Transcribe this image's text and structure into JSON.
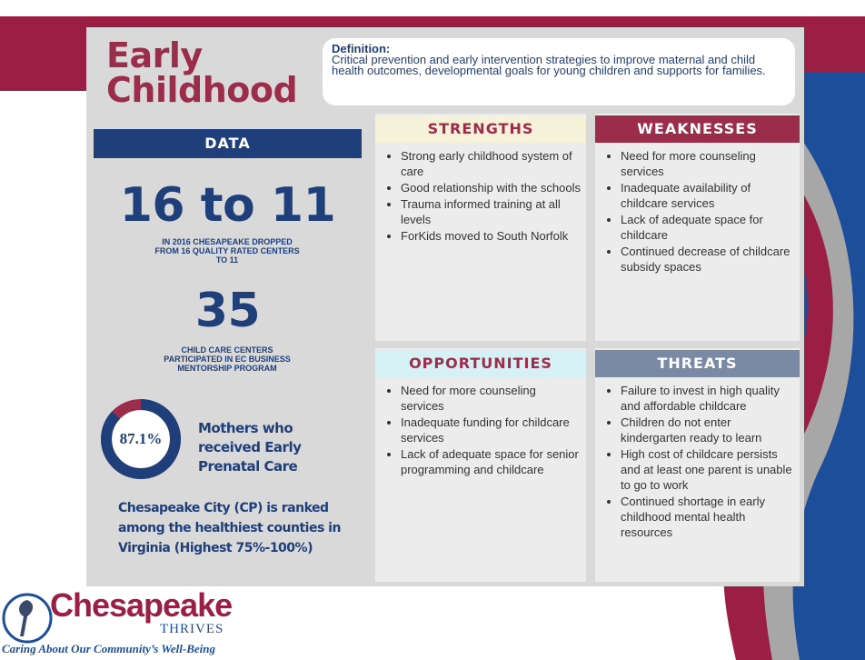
{
  "title_lines": [
    "Early",
    "Childhood"
  ],
  "definition": {
    "heading": "Definition:",
    "text": "Critical prevention and early intervention strategies to improve maternal and child health outcomes, developmental goals for young children and supports for families."
  },
  "data_panel": {
    "heading": "DATA",
    "stats": [
      {
        "value": "16 to 11",
        "caption": "IN 2016 CHESAPEAKE DROPPED FROM 16 QUALITY RATED CENTERS TO 11"
      },
      {
        "value": "35",
        "caption": "CHILD CARE CENTERS PARTICIPATED IN EC BUSINESS MENTORSHIP PROGRAM"
      }
    ],
    "prenatal": {
      "value": 87.1,
      "value_label": "87.1%",
      "label": "Mothers who received Early Prenatal Care"
    },
    "ranking": "Chesapeake City (CP) is ranked among the healthiest counties in Virginia (Highest 75%-100%)"
  },
  "swot": [
    {
      "heading": "STRENGTHS",
      "items": [
        "Strong early childhood system of care",
        "Good relationship with the schools",
        "Trauma informed training at all levels",
        "ForKids moved to South Norfolk"
      ]
    },
    {
      "heading": "WEAKNESSES",
      "items": [
        "Need for more counseling services",
        "Inadequate availability of childcare services",
        "Lack of adequate space for childcare",
        "Continued decrease of childcare subsidy spaces"
      ]
    },
    {
      "heading": "OPPORTUNITIES",
      "items": [
        "Need for more counseling services",
        "Inadequate funding for childcare services",
        "Lack of adequate space for senior programming and childcare"
      ]
    },
    {
      "heading": "THREATS",
      "items": [
        "Failure to invest in high quality and affordable childcare",
        "Children do not enter kindergarten ready to learn",
        "High cost of childcare persists and at least one parent is unable to go to work",
        "Continued shortage in early childhood mental health resources"
      ]
    }
  ],
  "logo": {
    "name": "Chesapeake",
    "sub": "THRIVES",
    "tagline": "Caring About Our Community’s Well-Being"
  }
}
